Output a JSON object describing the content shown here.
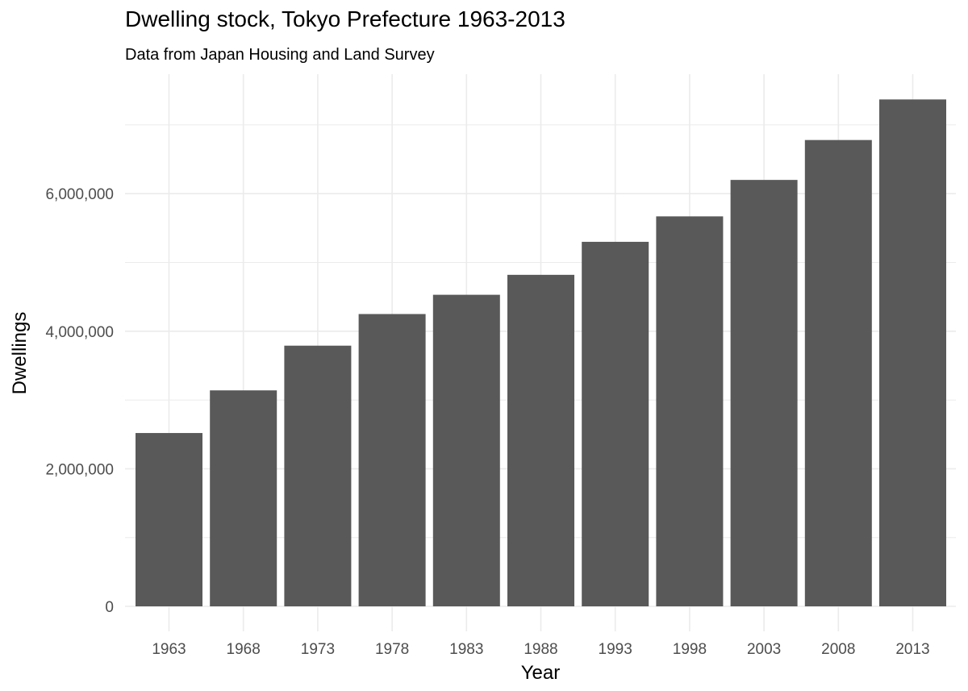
{
  "chart_data": {
    "type": "bar",
    "title": "Dwelling stock, Tokyo Prefecture 1963-2013",
    "subtitle": "Data from Japan Housing and Land Survey",
    "xlabel": "Year",
    "ylabel": "Dwellings",
    "categories": [
      "1963",
      "1968",
      "1973",
      "1978",
      "1983",
      "1988",
      "1993",
      "1998",
      "2003",
      "2008",
      "2013"
    ],
    "values": [
      2520000,
      3140000,
      3790000,
      4250000,
      4530000,
      4820000,
      5300000,
      5670000,
      6200000,
      6780000,
      7370000
    ],
    "ylim": [
      0,
      7700000
    ],
    "yticks": [
      0,
      2000000,
      4000000,
      6000000
    ],
    "ytick_labels": [
      "0",
      "2,000,000",
      "4,000,000",
      "6,000,000"
    ],
    "grid": true,
    "bar_color": "#595959",
    "grid_color": "#ebebeb"
  }
}
